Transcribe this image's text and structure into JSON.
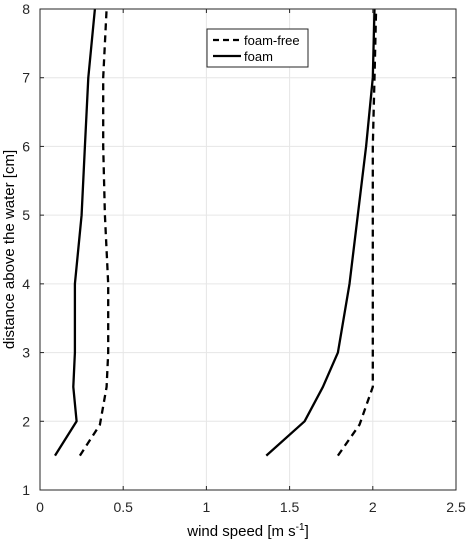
{
  "chart_data": {
    "type": "line",
    "title": "",
    "xlabel": "wind speed [m s",
    "xlabel_sup": "-1",
    "xlabel_close": "]",
    "ylabel": "distance above the water [cm]",
    "xlim": [
      0,
      2.5
    ],
    "ylim": [
      1,
      8
    ],
    "xticks": [
      0,
      0.5,
      1,
      1.5,
      2,
      2.5
    ],
    "xtick_labels": [
      "0",
      "0.5",
      "1",
      "1.5",
      "2",
      "2.5"
    ],
    "yticks": [
      1,
      2,
      3,
      4,
      5,
      6,
      7,
      8
    ],
    "ytick_labels": [
      "1",
      "2",
      "3",
      "4",
      "5",
      "6",
      "7",
      "8"
    ],
    "grid": true,
    "legend_position": "top-center",
    "legend": [
      {
        "label": "foam-free",
        "style": "dashed"
      },
      {
        "label": "foam",
        "style": "solid"
      }
    ],
    "series": [
      {
        "name": "foam-free",
        "style": "dashed",
        "color": "#000000",
        "points": [
          [
            0.24,
            1.5
          ],
          [
            0.36,
            1.95
          ],
          [
            0.4,
            2.5
          ],
          [
            0.41,
            3.0
          ],
          [
            0.41,
            4.0
          ],
          [
            0.39,
            5.0
          ],
          [
            0.38,
            6.0
          ],
          [
            0.38,
            7.0
          ],
          [
            0.4,
            8.0
          ]
        ]
      },
      {
        "name": "foam-free",
        "style": "dashed",
        "color": "#000000",
        "points": [
          [
            1.79,
            1.5
          ],
          [
            1.92,
            1.95
          ],
          [
            2.0,
            2.5
          ],
          [
            2.0,
            3.0
          ],
          [
            2.0,
            4.0
          ],
          [
            2.0,
            5.0
          ],
          [
            2.0,
            6.0
          ],
          [
            2.01,
            7.0
          ],
          [
            2.02,
            8.0
          ]
        ]
      },
      {
        "name": "foam",
        "style": "solid",
        "color": "#000000",
        "points": [
          [
            0.09,
            1.5
          ],
          [
            0.22,
            2.0
          ],
          [
            0.2,
            2.5
          ],
          [
            0.21,
            3.0
          ],
          [
            0.21,
            4.0
          ],
          [
            0.25,
            5.0
          ],
          [
            0.27,
            6.0
          ],
          [
            0.29,
            7.0
          ],
          [
            0.33,
            8.0
          ]
        ]
      },
      {
        "name": "foam",
        "style": "solid",
        "color": "#000000",
        "points": [
          [
            1.36,
            1.5
          ],
          [
            1.59,
            2.0
          ],
          [
            1.7,
            2.5
          ],
          [
            1.79,
            3.0
          ],
          [
            1.86,
            4.0
          ],
          [
            1.91,
            5.0
          ],
          [
            1.96,
            6.0
          ],
          [
            2.0,
            7.0
          ],
          [
            2.01,
            8.0
          ]
        ]
      }
    ]
  }
}
